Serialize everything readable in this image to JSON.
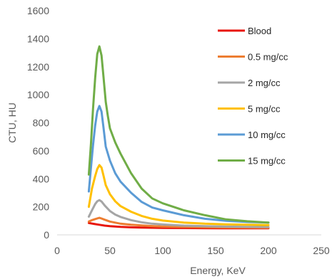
{
  "chart_data": {
    "type": "line",
    "title": "",
    "xlabel": "Energy, KeV",
    "ylabel": "CTU, HU",
    "xlim": [
      0,
      250
    ],
    "ylim": [
      0,
      1600
    ],
    "xticks": [
      0,
      50,
      100,
      150,
      200,
      250
    ],
    "yticks": [
      0,
      200,
      400,
      600,
      800,
      1000,
      1200,
      1400,
      1600
    ],
    "grid": false,
    "legend_position": "right",
    "series": [
      {
        "name": "Blood",
        "color": "#e8160c",
        "x": [
          30,
          35,
          40,
          45,
          50,
          60,
          70,
          80,
          90,
          100,
          120,
          140,
          160,
          180,
          200
        ],
        "y": [
          85,
          78,
          72,
          66,
          62,
          57,
          54,
          52,
          51,
          50,
          49,
          48,
          47,
          47,
          47
        ]
      },
      {
        "name": "0.5 mg/cc",
        "color": "#ed7d31",
        "x": [
          30,
          33,
          36,
          40,
          42,
          45,
          50,
          60,
          70,
          80,
          90,
          100,
          120,
          140,
          160,
          180,
          200
        ],
        "y": [
          95,
          105,
          113,
          122,
          117,
          108,
          95,
          80,
          72,
          67,
          63,
          60,
          57,
          55,
          53,
          52,
          51
        ]
      },
      {
        "name": "2 mg/cc",
        "color": "#a5a5a5",
        "x": [
          30,
          33,
          36,
          38,
          40,
          42,
          45,
          50,
          55,
          60,
          70,
          80,
          90,
          100,
          120,
          140,
          160,
          180,
          200
        ],
        "y": [
          130,
          175,
          220,
          240,
          248,
          238,
          210,
          170,
          145,
          128,
          105,
          90,
          80,
          74,
          66,
          62,
          59,
          57,
          56
        ]
      },
      {
        "name": "5 mg/cc",
        "color": "#ffc000",
        "x": [
          30,
          33,
          36,
          38,
          40,
          42,
          44,
          46,
          50,
          55,
          60,
          70,
          80,
          90,
          100,
          120,
          140,
          160,
          180,
          200
        ],
        "y": [
          200,
          330,
          420,
          470,
          498,
          480,
          420,
          355,
          290,
          240,
          205,
          165,
          135,
          115,
          102,
          88,
          80,
          75,
          72,
          70
        ]
      },
      {
        "name": "10 mg/cc",
        "color": "#5b9bd5",
        "x": [
          30,
          32,
          34,
          36,
          38,
          40,
          42,
          44,
          46,
          50,
          55,
          60,
          70,
          80,
          90,
          100,
          120,
          140,
          160,
          180,
          200
        ],
        "y": [
          310,
          480,
          640,
          780,
          880,
          920,
          880,
          760,
          630,
          530,
          440,
          380,
          300,
          235,
          195,
          175,
          140,
          115,
          100,
          92,
          88
        ]
      },
      {
        "name": "15 mg/cc",
        "color": "#70ad47",
        "x": [
          30,
          32,
          34,
          36,
          38,
          40,
          42,
          44,
          46,
          48,
          50,
          55,
          60,
          70,
          80,
          90,
          100,
          120,
          140,
          160,
          180,
          200
        ],
        "y": [
          430,
          650,
          900,
          1120,
          1290,
          1345,
          1280,
          1120,
          950,
          850,
          760,
          660,
          580,
          440,
          330,
          260,
          225,
          175,
          140,
          110,
          97,
          88
        ]
      }
    ]
  }
}
